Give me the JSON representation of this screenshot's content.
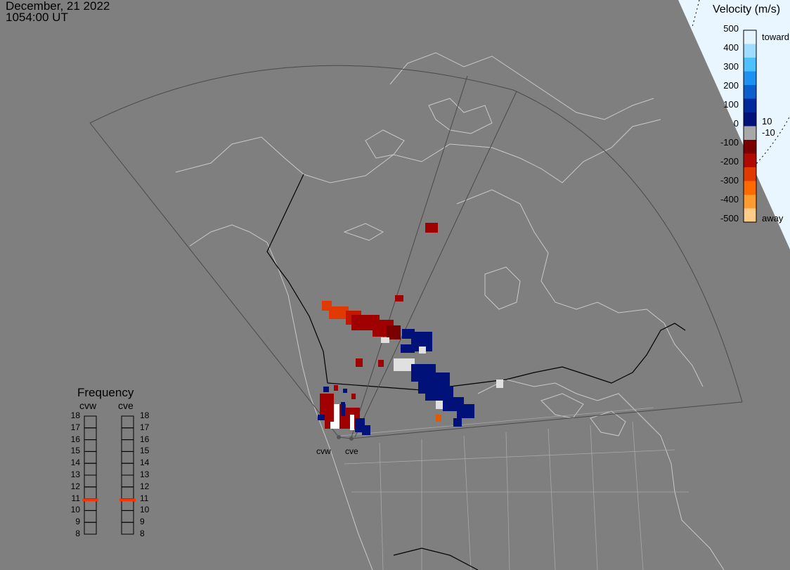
{
  "timestamp": {
    "date": "December, 21 2022",
    "time": "1054:00 UT"
  },
  "colors": {
    "background": "#7f7f7f",
    "land_outline": "#c9c9c9",
    "border_black": "#000000",
    "fov_outline": "#4a4a4a",
    "panel_bg": "#e9f6ff",
    "frequency_marker": "#ff3300"
  },
  "velocity_scale": {
    "title": "Velocity (m/s)",
    "ticks": [
      "500",
      "400",
      "300",
      "200",
      "100",
      "0",
      "-100",
      "-200",
      "-300",
      "-400",
      "-500"
    ],
    "toward_label": "toward",
    "away_label": "away",
    "inner_plus": "10",
    "inner_minus": "-10",
    "colors": [
      "#e3f4ff",
      "#9fdcff",
      "#4dc0ff",
      "#1e90f0",
      "#0a5fcc",
      "#00289a",
      "#00127a",
      "#a8a8a8",
      "#7a0000",
      "#b00a00",
      "#e03a00",
      "#ff6a00",
      "#ff9c30",
      "#ffcc8a"
    ]
  },
  "frequency": {
    "title": "Frequency",
    "radars": [
      "cvw",
      "cve"
    ],
    "ticks": [
      "18",
      "17",
      "16",
      "15",
      "14",
      "13",
      "12",
      "11",
      "10",
      "9",
      "8"
    ],
    "values_mhz": [
      10.9,
      10.9
    ]
  },
  "stations": [
    "cvw",
    "cve"
  ]
}
